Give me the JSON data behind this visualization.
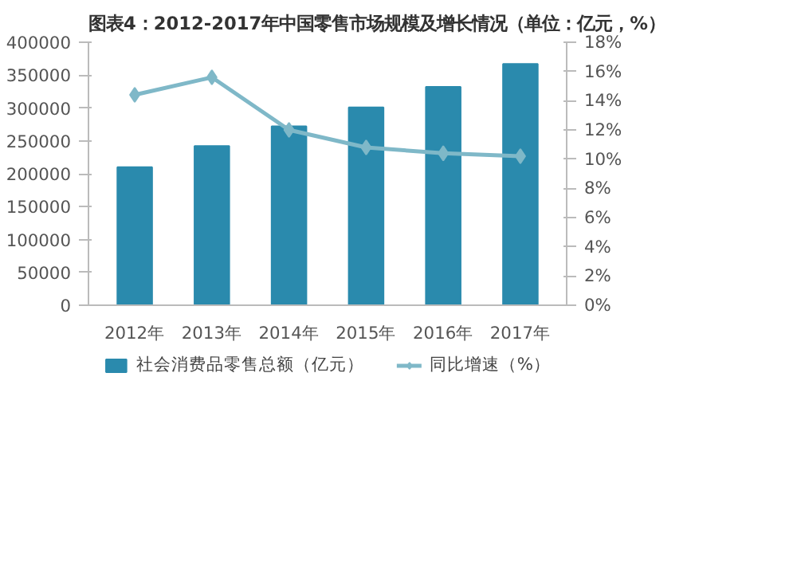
{
  "chart_data": {
    "type": "bar",
    "title": "图表4：2012-2017年中国零售市场规模及增长情况（单位：亿元，%）",
    "categories": [
      "2012年",
      "2013年",
      "2014年",
      "2015年",
      "2016年",
      "2017年"
    ],
    "series": [
      {
        "name": "社会消费品零售总额（亿元）",
        "color": "#2a8aad",
        "values": [
          210000,
          242000,
          272000,
          301000,
          332000,
          367000
        ]
      },
      {
        "name": "同比增速（%）",
        "type": "line",
        "axis": "y2",
        "color": "#7fb8c8",
        "values": [
          14.4,
          15.6,
          12.0,
          10.8,
          10.4,
          10.2
        ]
      }
    ],
    "ylim": [
      0,
      400000
    ],
    "yticks": [
      0,
      50000,
      100000,
      150000,
      200000,
      250000,
      300000,
      350000,
      400000
    ],
    "y2lim": [
      0,
      18
    ],
    "y2ticks": [
      {
        "value": 0,
        "label": "0%"
      },
      {
        "value": 2,
        "label": "2%"
      },
      {
        "value": 4,
        "label": "4%"
      },
      {
        "value": 6,
        "label": "6%"
      },
      {
        "value": 8,
        "label": "8%"
      },
      {
        "value": 10,
        "label": "10%"
      },
      {
        "value": 12,
        "label": "12%"
      },
      {
        "value": 14,
        "label": "14%"
      },
      {
        "value": 16,
        "label": "16%"
      },
      {
        "value": 18,
        "label": "18%"
      }
    ],
    "grid": false,
    "legend": "bottom",
    "marker": "diamond",
    "line_style": "solid"
  }
}
